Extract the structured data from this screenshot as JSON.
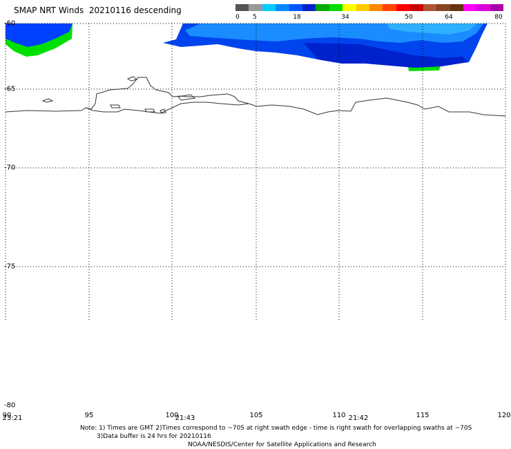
{
  "title": "SMAP NRT Winds  20210116 descending",
  "colorbar": {
    "ticks": [
      "0",
      "5",
      "18",
      "34",
      "50",
      "64",
      "80"
    ],
    "colors": [
      "#555555",
      "#999999",
      "#00ccff",
      "#0088ff",
      "#0055ff",
      "#0022cc",
      "#00aa00",
      "#00dd00",
      "#ffff00",
      "#ffcc00",
      "#ff8800",
      "#ff4400",
      "#ff0000",
      "#cc0000",
      "#aa5533",
      "#884422",
      "#663311",
      "#ff00ff",
      "#dd00dd",
      "#aa00aa"
    ]
  },
  "map": {
    "lat_labels": [
      "-60",
      "-65",
      "-70",
      "-75",
      "-80"
    ],
    "lon_labels": [
      "90",
      "95",
      "100",
      "105",
      "110",
      "115",
      "120"
    ],
    "time_labels": [
      "23:21",
      "21:43",
      "21:42"
    ]
  },
  "notes": {
    "line1": "Note: 1) Times are GMT 2)Times correspond to ~70S at right swath edge - time is right swath for overlapping swaths at ~70S",
    "line2": "3)Data buffer is 24 hrs for 20210116",
    "line3": "NOAA/NESDIS/Center for Satellite Applications and Research"
  }
}
